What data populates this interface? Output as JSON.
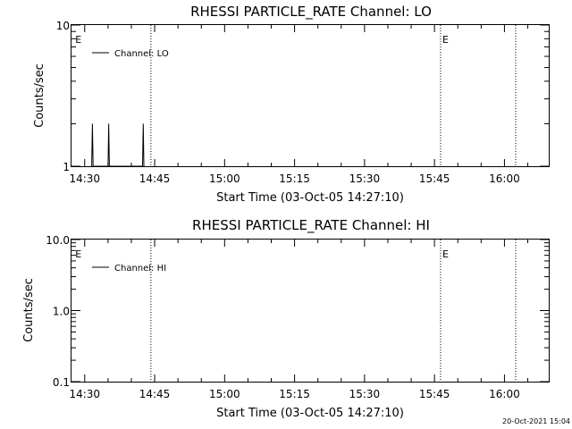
{
  "chart_data": [
    {
      "type": "line",
      "title": "RHESSI PARTICLE_RATE Channel: LO",
      "xlabel": "Start Time (03-Oct-05 14:27:10)",
      "ylabel": "Counts/sec",
      "yscale": "log",
      "ylim": [
        1,
        10
      ],
      "y_tick_labels": [
        "1",
        "10"
      ],
      "x_tick_labels": [
        "14:30",
        "14:45",
        "15:00",
        "15:15",
        "15:30",
        "15:45",
        "16:00"
      ],
      "x_ticks_min": [
        30,
        45,
        60,
        75,
        90,
        105,
        120
      ],
      "xlim_min": [
        27.17,
        129.5
      ],
      "legend": {
        "label": "Channel: LO",
        "position": "top-left"
      },
      "vlines_min": [
        44.2,
        106.3,
        122.4
      ],
      "markers": [
        {
          "x_min": 27.8,
          "label": "E"
        },
        {
          "x_min": 106.5,
          "label": "E"
        }
      ],
      "series": [
        {
          "label": "Channel: LO",
          "points": [
            [
              31.5,
              1
            ],
            [
              31.65,
              2
            ],
            [
              31.8,
              1
            ],
            [
              35.0,
              1
            ],
            [
              35.15,
              2
            ],
            [
              35.3,
              1
            ],
            [
              42.4,
              1
            ],
            [
              42.55,
              2
            ],
            [
              42.7,
              1
            ]
          ]
        }
      ]
    },
    {
      "type": "line",
      "title": "RHESSI PARTICLE_RATE Channel: HI",
      "xlabel": "Start Time (03-Oct-05 14:27:10)",
      "ylabel": "Counts/sec",
      "yscale": "log",
      "ylim": [
        0.1,
        10
      ],
      "y_tick_labels": [
        "0.1",
        "1.0",
        "10.0"
      ],
      "x_tick_labels": [
        "14:30",
        "14:45",
        "15:00",
        "15:15",
        "15:30",
        "15:45",
        "16:00"
      ],
      "x_ticks_min": [
        30,
        45,
        60,
        75,
        90,
        105,
        120
      ],
      "xlim_min": [
        27.17,
        129.5
      ],
      "legend": {
        "label": "Channel: HI",
        "position": "top-left"
      },
      "vlines_min": [
        44.2,
        106.3,
        122.4
      ],
      "markers": [
        {
          "x_min": 27.8,
          "label": "E"
        },
        {
          "x_min": 106.5,
          "label": "E"
        }
      ],
      "series": [
        {
          "label": "Channel: HI",
          "points": []
        }
      ]
    }
  ],
  "timestamp": "20-Oct-2021 15:04"
}
